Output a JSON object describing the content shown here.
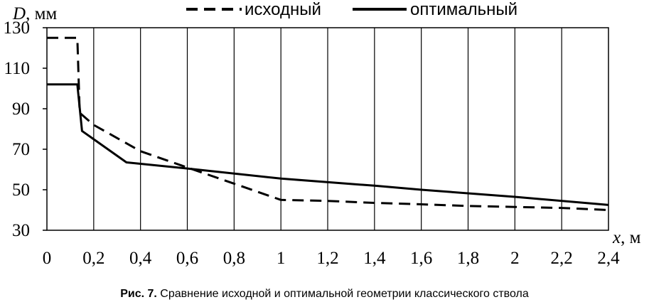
{
  "chart_data": {
    "type": "line",
    "y_axis_title": {
      "var": "D",
      "unit": ", мм"
    },
    "x_axis_title": {
      "var": "x",
      "unit": ", м"
    },
    "x_ticks": [
      "0",
      "0,2",
      "0,4",
      "0,6",
      "0,8",
      "1",
      "1,2",
      "1,4",
      "1,6",
      "1,8",
      "2",
      "2,2",
      "2,4"
    ],
    "y_ticks": [
      "30",
      "50",
      "70",
      "90",
      "110",
      "130"
    ],
    "xlim": [
      0,
      2.4
    ],
    "ylim": [
      30,
      130
    ],
    "grid": "vertical",
    "legend_position": "top",
    "series": [
      {
        "name": "исходный",
        "style": "dashed",
        "color": "#000000",
        "points": [
          [
            0,
            125
          ],
          [
            0.13,
            125
          ],
          [
            0.14,
            88
          ],
          [
            0.2,
            82
          ],
          [
            0.4,
            69
          ],
          [
            0.6,
            61
          ],
          [
            0.8,
            53
          ],
          [
            1.0,
            45
          ],
          [
            1.2,
            44.5
          ],
          [
            1.4,
            43.5
          ],
          [
            1.6,
            42.8
          ],
          [
            1.8,
            42
          ],
          [
            2.0,
            41.5
          ],
          [
            2.2,
            41
          ],
          [
            2.4,
            40
          ]
        ]
      },
      {
        "name": "оптимальный",
        "style": "solid",
        "color": "#000000",
        "points": [
          [
            0,
            102
          ],
          [
            0.13,
            102
          ],
          [
            0.15,
            79
          ],
          [
            0.34,
            63.5
          ],
          [
            0.6,
            60.5
          ],
          [
            1.0,
            55.5
          ],
          [
            1.4,
            52
          ],
          [
            1.6,
            50
          ],
          [
            2.0,
            46.5
          ],
          [
            2.4,
            42.5
          ]
        ]
      }
    ]
  },
  "caption": {
    "label": "Рис. 7.",
    "text": " Сравнение исходной и оптимальной геометрии классического ствола"
  }
}
